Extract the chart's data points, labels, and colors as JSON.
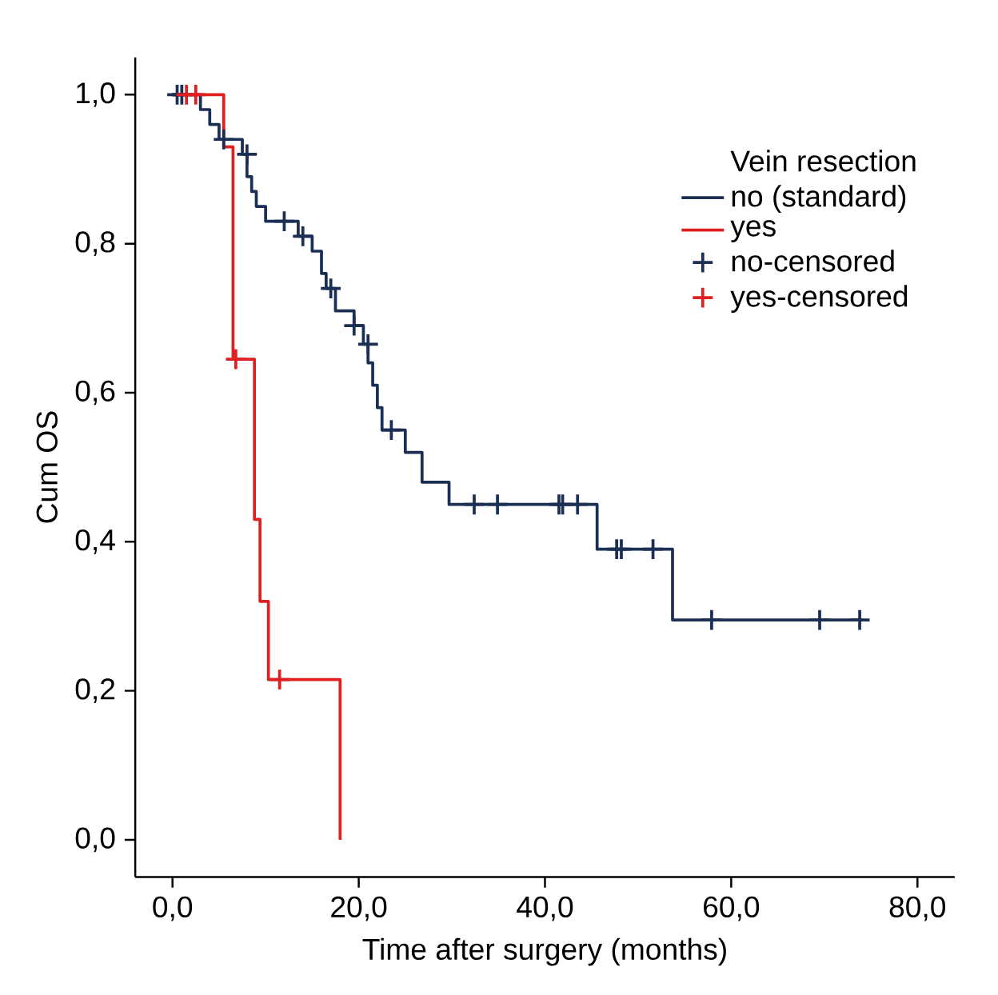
{
  "chart_data": {
    "type": "step",
    "xlabel": "Time after surgery (months)",
    "ylabel": "Cum OS",
    "legend_title": "Vein resection",
    "legend": "top right",
    "xlim": [
      -4,
      84
    ],
    "ylim": [
      -0.05,
      1.05
    ],
    "xticks": [
      {
        "value": 0,
        "label": "0,0"
      },
      {
        "value": 20,
        "label": "20,0"
      },
      {
        "value": 40,
        "label": "40,0"
      },
      {
        "value": 60,
        "label": "60,0"
      },
      {
        "value": 80,
        "label": "80,0"
      }
    ],
    "yticks": [
      {
        "value": 0,
        "label": "0,0"
      },
      {
        "value": 0.2,
        "label": "0,2"
      },
      {
        "value": 0.4,
        "label": "0,4"
      },
      {
        "value": 0.6,
        "label": "0,6"
      },
      {
        "value": 0.8,
        "label": "0,8"
      },
      {
        "value": 1,
        "label": "1,0"
      }
    ],
    "series": [
      {
        "name": "no (standard)",
        "color": "#1b2f55",
        "x": [
          0,
          3,
          4,
          5,
          7.5,
          8,
          8.5,
          9,
          10,
          13.5,
          15,
          16,
          16.5,
          17.5,
          19.5,
          20.5,
          21,
          21.5,
          22,
          22.5,
          25,
          26.8,
          29.7,
          45.6,
          53.7,
          74.1
        ],
        "values": [
          1,
          0.98,
          0.96,
          0.94,
          0.92,
          0.89,
          0.87,
          0.85,
          0.83,
          0.81,
          0.79,
          0.76,
          0.74,
          0.71,
          0.69,
          0.665,
          0.64,
          0.61,
          0.58,
          0.55,
          0.52,
          0.48,
          0.45,
          0.39,
          0.295,
          0.295
        ]
      },
      {
        "name": "yes",
        "color": "#e02020",
        "x": [
          0,
          5.5,
          6.5,
          8.8,
          9.4,
          10.3,
          18,
          18
        ],
        "values": [
          1,
          0.93,
          0.645,
          0.43,
          0.32,
          0.215,
          0,
          0
        ]
      },
      {
        "name": "no-censored",
        "type": "scatter",
        "marker": "cross",
        "color": "#1b2f55",
        "x": [
          0.5,
          1,
          5.5,
          8,
          12,
          14,
          17,
          19.5,
          21,
          23.5,
          32.4,
          34.9,
          41.5,
          41.9,
          43.5,
          47.7,
          48.2,
          51.6,
          57.9,
          69.5,
          73.8
        ],
        "values": [
          1,
          1,
          0.94,
          0.92,
          0.83,
          0.81,
          0.74,
          0.69,
          0.665,
          0.55,
          0.45,
          0.45,
          0.45,
          0.45,
          0.45,
          0.39,
          0.39,
          0.39,
          0.295,
          0.295,
          0.295
        ]
      },
      {
        "name": "yes-censored",
        "type": "scatter",
        "marker": "cross",
        "color": "#e02020",
        "x": [
          1.5,
          2.5,
          6.8,
          11.5
        ],
        "values": [
          1,
          1,
          0.645,
          0.215
        ]
      }
    ]
  }
}
